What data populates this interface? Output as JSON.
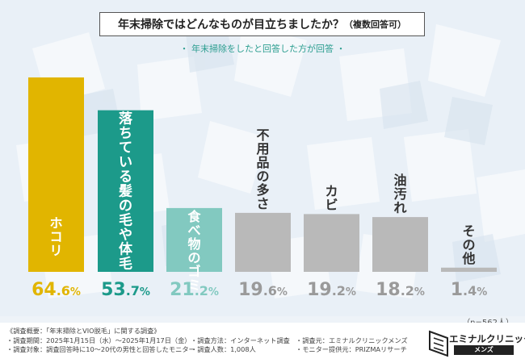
{
  "title": "年末掃除ではどんなものが目立ちましたか？",
  "title_note": "（複数回答可）",
  "subtitle": "・ 年末掃除をしたと回答した方が回答 ・",
  "n_note": "（n=562人）",
  "colors": {
    "gold": "#e1b500",
    "teal": "#1c9a8a",
    "lightteal": "#82c9c0",
    "gray": "#b9b9b9"
  },
  "chart_data": {
    "type": "bar",
    "categories": [
      "ホコリ",
      "落ちている髪の毛や体毛",
      "食べ物のゴミ",
      "不用品の多さ",
      "カビ",
      "油汚れ",
      "その他"
    ],
    "values": [
      64.6,
      53.7,
      21.2,
      19.6,
      19.2,
      18.2,
      1.4
    ],
    "unit": "%",
    "bar_colors": [
      "gold",
      "teal",
      "lightteal",
      "gray",
      "gray",
      "gray",
      "gray"
    ],
    "ylim": [
      0,
      100
    ]
  },
  "footer": {
    "line1": "《調査概要：「年末掃除とVIO脱毛」に関する調査》",
    "period": "・調査期間：2025年1月15日（水）～2025年1月17日（金）",
    "method": "・調査方法：インターネット調査",
    "origin": "・調査元：エミナルクリニックメンズ",
    "target": "・調査対象：調査回答時に10～20代の男性と回答したモニター",
    "count": "・調査人数：1,008人",
    "provider": "・モニター提供元：PRIZMAリサーチ"
  },
  "logo": {
    "name": "エミナルクリニック",
    "sub": "メンズ"
  }
}
